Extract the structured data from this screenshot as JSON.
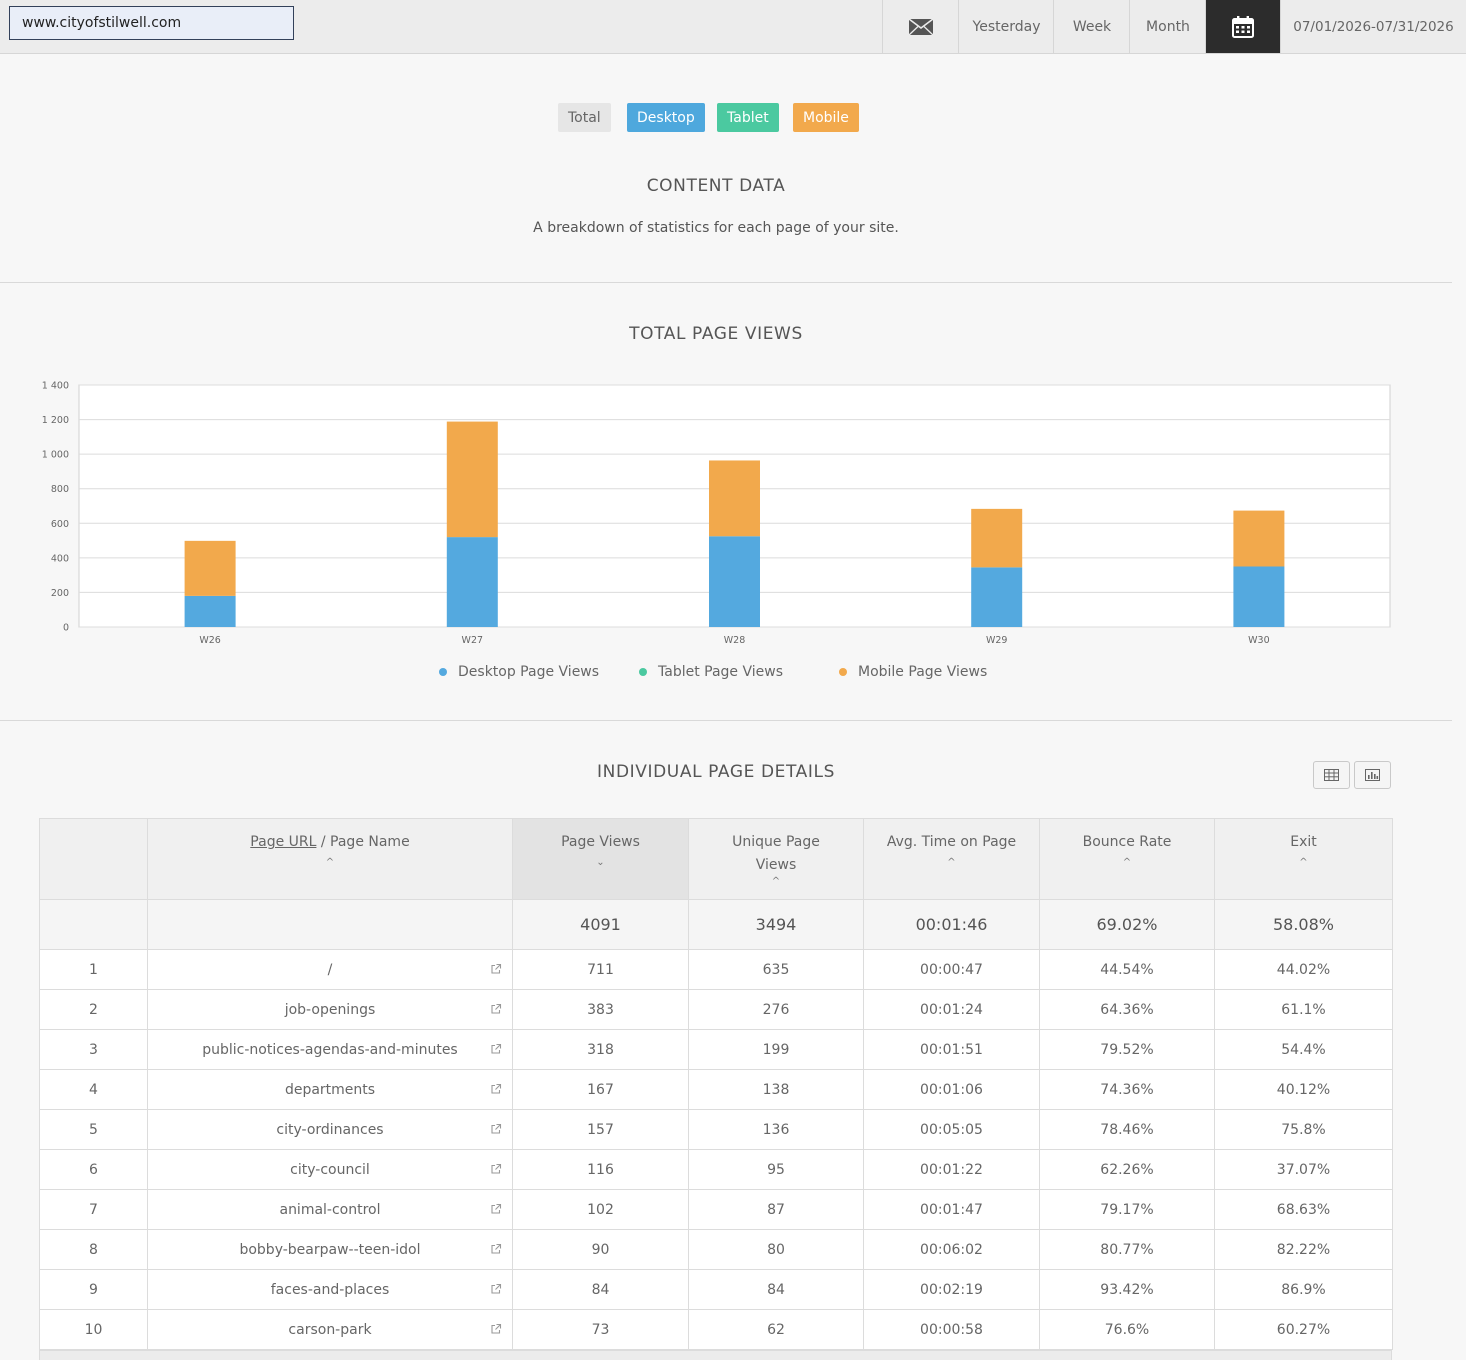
{
  "header": {
    "site_url": "www.cityofstilwell.com",
    "nav": {
      "email_icon": "envelope-icon",
      "yesterday": "Yesterday",
      "week": "Week",
      "month": "Month",
      "calendar_icon": "calendar-icon",
      "date_range": "07/01/2026-07/31/2026"
    }
  },
  "filters": {
    "total": "Total",
    "desktop": "Desktop",
    "tablet": "Tablet",
    "mobile": "Mobile"
  },
  "content_section": {
    "title": "CONTENT DATA",
    "subtitle": "A breakdown of statistics for each page of your site."
  },
  "chart_section": {
    "title": "TOTAL PAGE VIEWS"
  },
  "chart_data": {
    "type": "bar",
    "stacked": true,
    "categories": [
      "W26",
      "W27",
      "W28",
      "W29",
      "W30"
    ],
    "series": [
      {
        "name": "Desktop Page Views",
        "color": "#54a9df",
        "values": [
          180,
          520,
          525,
          345,
          350
        ]
      },
      {
        "name": "Tablet Page Views",
        "color": "#4bc9a0",
        "values": [
          0,
          0,
          0,
          0,
          0
        ]
      },
      {
        "name": "Mobile Page Views",
        "color": "#f2a94c",
        "values": [
          330,
          680,
          450,
          350,
          335
        ]
      }
    ],
    "ylim": [
      0,
      1400
    ],
    "yticks": [
      0,
      200,
      400,
      600,
      800,
      1000,
      1200,
      1400
    ],
    "ytick_labels": [
      "0",
      "200",
      "400",
      "600",
      "800",
      "1 000",
      "1 200",
      "1 400"
    ],
    "grid": true,
    "legend_position": "bottom"
  },
  "details_section": {
    "title": "INDIVIDUAL PAGE DETAILS",
    "table_view_icon": "table-icon",
    "chart_view_icon": "bar-chart-icon"
  },
  "table": {
    "headers": {
      "url_link": "Page URL",
      "url_rest": " / Page Name",
      "page_views": "Page Views",
      "unique_views": "Unique Page Views",
      "avg_time": "Avg. Time on Page",
      "bounce_rate": "Bounce Rate",
      "exit": "Exit"
    },
    "totals": {
      "page_views": "4091",
      "unique_views": "3494",
      "avg_time": "00:01:46",
      "bounce_rate": "69.02%",
      "exit": "58.08%"
    },
    "rows": [
      {
        "rank": "1",
        "page": "/",
        "views": "711",
        "unique": "635",
        "time": "00:00:47",
        "bounce": "44.54%",
        "exit": "44.02%"
      },
      {
        "rank": "2",
        "page": "job-openings",
        "views": "383",
        "unique": "276",
        "time": "00:01:24",
        "bounce": "64.36%",
        "exit": "61.1%"
      },
      {
        "rank": "3",
        "page": "public-notices-agendas-and-minutes",
        "views": "318",
        "unique": "199",
        "time": "00:01:51",
        "bounce": "79.52%",
        "exit": "54.4%"
      },
      {
        "rank": "4",
        "page": "departments",
        "views": "167",
        "unique": "138",
        "time": "00:01:06",
        "bounce": "74.36%",
        "exit": "40.12%"
      },
      {
        "rank": "5",
        "page": "city-ordinances",
        "views": "157",
        "unique": "136",
        "time": "00:05:05",
        "bounce": "78.46%",
        "exit": "75.8%"
      },
      {
        "rank": "6",
        "page": "city-council",
        "views": "116",
        "unique": "95",
        "time": "00:01:22",
        "bounce": "62.26%",
        "exit": "37.07%"
      },
      {
        "rank": "7",
        "page": "animal-control",
        "views": "102",
        "unique": "87",
        "time": "00:01:47",
        "bounce": "79.17%",
        "exit": "68.63%"
      },
      {
        "rank": "8",
        "page": "bobby-bearpaw--teen-idol",
        "views": "90",
        "unique": "80",
        "time": "00:06:02",
        "bounce": "80.77%",
        "exit": "82.22%"
      },
      {
        "rank": "9",
        "page": "faces-and-places",
        "views": "84",
        "unique": "84",
        "time": "00:02:19",
        "bounce": "93.42%",
        "exit": "86.9%"
      },
      {
        "rank": "10",
        "page": "carson-park",
        "views": "73",
        "unique": "62",
        "time": "00:00:58",
        "bounce": "76.6%",
        "exit": "60.27%"
      }
    ],
    "external_link_icon": "external-link-icon"
  }
}
